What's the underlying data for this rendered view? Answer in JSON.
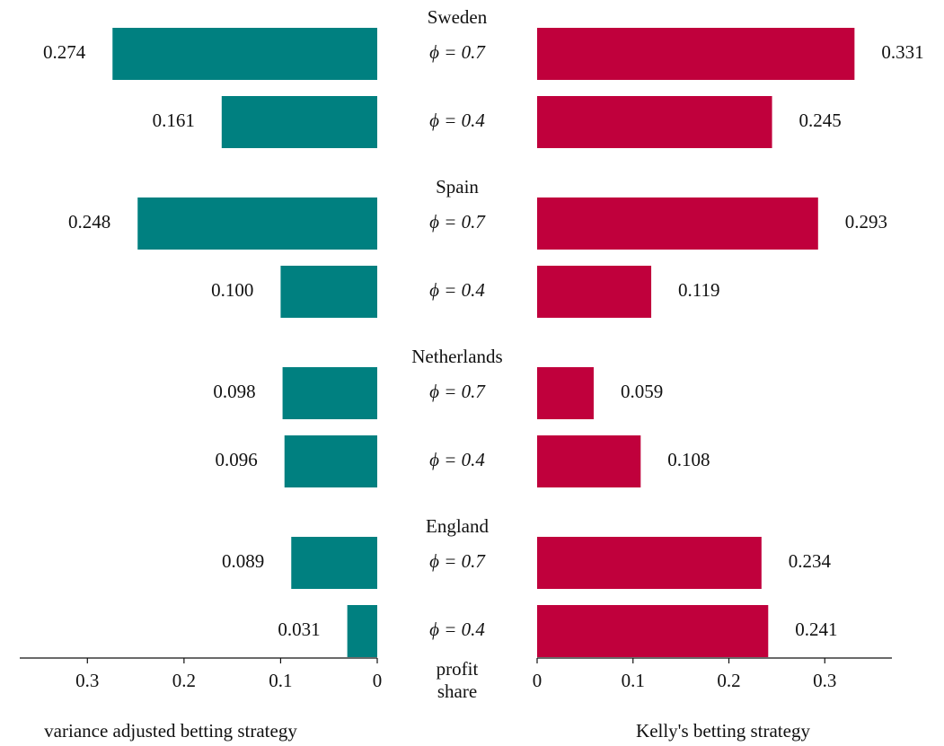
{
  "chart_data": {
    "type": "butterfly-bar",
    "groups": [
      "Sweden",
      "Spain",
      "Netherlands",
      "England"
    ],
    "categories": [
      "ϕ = 0.7",
      "ϕ = 0.4",
      "ϕ = 0.7",
      "ϕ = 0.4",
      "ϕ = 0.7",
      "ϕ = 0.4",
      "ϕ = 0.7",
      "ϕ = 0.4"
    ],
    "series": [
      {
        "name": "variance adjusted betting strategy",
        "color": "#008080",
        "values": [
          0.274,
          0.161,
          0.248,
          0.1,
          0.098,
          0.096,
          0.089,
          0.031
        ],
        "value_labels": [
          "0.274",
          "0.161",
          "0.248",
          "0.100",
          "0.098",
          "0.096",
          "0.089",
          "0.031"
        ]
      },
      {
        "name": "Kelly's betting strategy",
        "color": "#c0003c",
        "values": [
          0.331,
          0.245,
          0.293,
          0.119,
          0.059,
          0.108,
          0.234,
          0.241
        ],
        "value_labels": [
          "0.331",
          "0.245",
          "0.293",
          "0.119",
          "0.059",
          "0.108",
          "0.234",
          "0.241"
        ]
      }
    ],
    "xlabel": [
      "profit",
      "share"
    ],
    "xlim": [
      0,
      0.37
    ],
    "xticks": [
      0,
      0.1,
      0.2,
      0.3
    ]
  }
}
